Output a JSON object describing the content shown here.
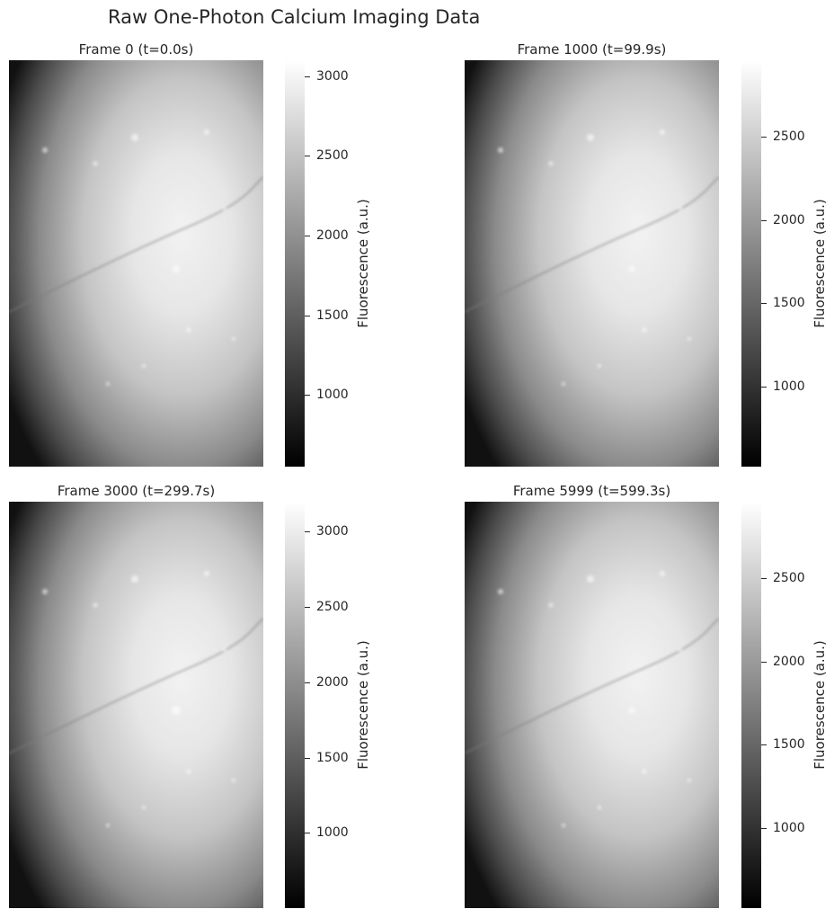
{
  "figure": {
    "title": "Raw One-Photon Calcium Imaging Data"
  },
  "chart_data": [
    {
      "type": "heatmap",
      "title": "Frame 0 (t=0.0s)",
      "colormap": "gray",
      "colorbar": {
        "label": "Fluorescence (a.u.)",
        "range": [
          550,
          3100
        ],
        "ticks": [
          1000,
          1500,
          2000,
          2500,
          3000
        ]
      }
    },
    {
      "type": "heatmap",
      "title": "Frame 1000 (t=99.9s)",
      "colormap": "gray",
      "colorbar": {
        "label": "Fluorescence (a.u.)",
        "range": [
          520,
          2960
        ],
        "ticks": [
          1000,
          1500,
          2000,
          2500
        ]
      }
    },
    {
      "type": "heatmap",
      "title": "Frame 3000 (t=299.7s)",
      "colormap": "gray",
      "colorbar": {
        "label": "Fluorescence (a.u.)",
        "range": [
          500,
          3200
        ],
        "ticks": [
          1000,
          1500,
          2000,
          2500,
          3000
        ]
      }
    },
    {
      "type": "heatmap",
      "title": "Frame 5999 (t=599.3s)",
      "colormap": "gray",
      "colorbar": {
        "label": "Fluorescence (a.u.)",
        "range": [
          520,
          2960
        ],
        "ticks": [
          1000,
          1500,
          2000,
          2500
        ]
      }
    }
  ]
}
